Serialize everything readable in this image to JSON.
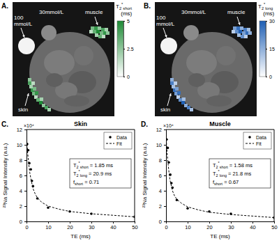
{
  "chart_data": [
    {
      "type": "image",
      "panel_label": "A.",
      "annotations": [
        [
          "100",
          "mmol/L"
        ],
        [
          "30mmol/L"
        ],
        [
          "muscle"
        ],
        [
          "skin"
        ]
      ],
      "colorbar": {
        "title": "T2*short (ms)",
        "range": [
          0,
          5
        ],
        "ticks": [
          0,
          2.5,
          5
        ],
        "colors": [
          "#ffffff",
          "#1e8b36"
        ]
      }
    },
    {
      "type": "image",
      "panel_label": "B.",
      "annotations": [
        [
          "100",
          "mmol/L"
        ],
        [
          "30mmol/L"
        ],
        [
          "muscle"
        ],
        [
          "skin"
        ]
      ],
      "colorbar": {
        "title": "T2*long (ms)",
        "range": [
          0,
          30
        ],
        "ticks": [
          0,
          15,
          30
        ],
        "colors": [
          "#ffffff",
          "#1f5fb4"
        ]
      }
    },
    {
      "type": "line",
      "panel_label": "C.",
      "title": "Skin",
      "x_label": "TE (ms)",
      "y_label": "²³Na Signal Intensity (a.u.)",
      "y_axis_factor": "×10⁴",
      "xlim": [
        0,
        50
      ],
      "xticks": [
        0,
        10,
        20,
        30,
        40,
        50
      ],
      "ylim": [
        0,
        12
      ],
      "yticks": [
        0,
        2,
        4,
        6,
        8,
        10,
        12
      ],
      "legend": "upper right",
      "series": [
        {
          "name": "Data",
          "type": "scatter",
          "marker": "circle",
          "color": "#000000",
          "x": [
            0.3,
            0.8,
            1.3,
            2,
            2.5,
            3,
            5,
            10,
            20,
            30,
            50
          ],
          "values": [
            10.1,
            9.3,
            7.6,
            6.8,
            5.3,
            4.6,
            3.0,
            1.8,
            1.3,
            1.0,
            0.6
          ]
        },
        {
          "name": "Fit",
          "type": "line",
          "line_style": "dashed",
          "color": "#000000",
          "x": [
            0,
            0.5,
            1,
            1.5,
            2,
            3,
            4,
            5,
            7,
            10,
            15,
            20,
            30,
            40,
            50
          ],
          "values": [
            11.0,
            9.1,
            7.6,
            6.4,
            5.6,
            4.3,
            3.6,
            3.1,
            2.5,
            2.0,
            1.6,
            1.3,
            1.0,
            0.8,
            0.6
          ]
        }
      ],
      "annotations": [
        "T2*short = 1.85 ms",
        "T2*long = 20.9 ms",
        "fshort = 0.71"
      ]
    },
    {
      "type": "line",
      "panel_label": "D.",
      "title": "Muscle",
      "x_label": "TE (ms)",
      "y_label": "²³Na Signal Intensity (a.u.)",
      "y_axis_factor": "×10⁴",
      "xlim": [
        0,
        50
      ],
      "xticks": [
        0,
        10,
        20,
        30,
        40,
        50
      ],
      "ylim": [
        0,
        12
      ],
      "yticks": [
        0,
        2,
        4,
        6,
        8,
        10,
        12
      ],
      "legend": "upper right",
      "series": [
        {
          "name": "Data",
          "type": "scatter",
          "marker": "circle",
          "color": "#000000",
          "x": [
            0.3,
            0.8,
            1.3,
            2,
            2.5,
            3,
            5,
            10,
            20,
            30,
            50
          ],
          "values": [
            10.7,
            9.6,
            7.7,
            6.1,
            5.0,
            4.4,
            2.8,
            1.7,
            1.3,
            1.0,
            0.5
          ]
        },
        {
          "name": "Fit",
          "type": "line",
          "line_style": "dashed",
          "color": "#000000",
          "x": [
            0,
            0.5,
            1,
            1.5,
            2,
            3,
            4,
            5,
            7,
            10,
            15,
            20,
            30,
            40,
            50
          ],
          "values": [
            11.2,
            9.0,
            7.4,
            6.1,
            5.2,
            4.0,
            3.3,
            2.9,
            2.4,
            1.9,
            1.5,
            1.2,
            0.9,
            0.7,
            0.5
          ]
        }
      ],
      "annotations": [
        "T2*short = 1.58 ms",
        "T2*long = 21.8 ms",
        "fshort = 0.67"
      ]
    }
  ]
}
